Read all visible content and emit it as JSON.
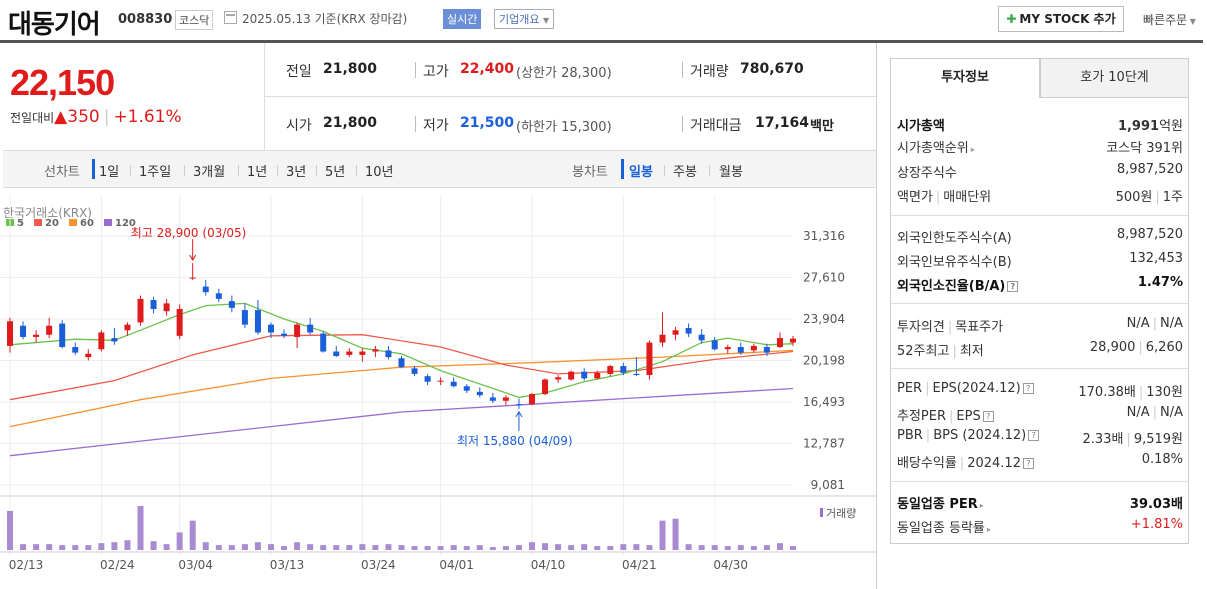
{
  "header": {
    "name": "대동기어",
    "code": "008830",
    "market": "코스닥",
    "date": "2025.05.13 기준(KRX 장마감)",
    "realtime": "실시간",
    "company_info": "기업개요",
    "mystock": "MY STOCK 추가",
    "quick_order": "빠른주문"
  },
  "price": {
    "current": "22,150",
    "change_label": "전일대비",
    "change_arrow": "▲",
    "change": "350",
    "change_pct": "+1.61%"
  },
  "quote": {
    "prev_label": "전일",
    "prev": "21,800",
    "high_label": "고가",
    "high": "22,400",
    "upper_limit": "(상한가 28,300)",
    "volume_label": "거래량",
    "volume": "780,670",
    "open_label": "시가",
    "open": "21,800",
    "low_label": "저가",
    "low": "21,500",
    "lower_limit": "(하한가 15,300)",
    "amount_label": "거래대금",
    "amount": "17,164",
    "amount_unit": "백만"
  },
  "periods": {
    "line_label": "선차트",
    "line_items": [
      "1일",
      "1주일",
      "3개월",
      "1년",
      "3년",
      "5년",
      "10년"
    ],
    "candle_label": "봉차트",
    "candle_items": [
      "일봉",
      "주봉",
      "월봉"
    ]
  },
  "chart_data": {
    "type": "candlestick",
    "source": "한국거래소(KRX)",
    "ma_legend": [
      {
        "name": "5",
        "color": "#6cc24a"
      },
      {
        "name": "20",
        "color": "#ef5a4c"
      },
      {
        "name": "60",
        "color": "#f7922f"
      },
      {
        "name": "120",
        "color": "#9b6bd1"
      }
    ],
    "y_ticks": [
      "31,316",
      "27,610",
      "23,904",
      "20,198",
      "16,493",
      "12,787",
      "9,081"
    ],
    "ylim": [
      9081,
      31316
    ],
    "x_labels": [
      "02/13",
      "02/24",
      "03/04",
      "03/13",
      "03/24",
      "04/01",
      "04/10",
      "04/21",
      "04/30"
    ],
    "x_label_days": [
      0,
      7,
      13,
      20,
      27,
      33,
      40,
      47,
      54
    ],
    "annotations": [
      {
        "text": "최고 28,900 (03/05)",
        "day": 14,
        "price": 28900,
        "color": "#e01b1b",
        "dir": "down"
      },
      {
        "text": "최저 15,880 (04/09)",
        "day": 39,
        "price": 15880,
        "color": "#1a5fd8",
        "dir": "up"
      }
    ],
    "volume_label": "거래량",
    "candles": [
      [
        0,
        21500,
        24000,
        20900,
        23700
      ],
      [
        1,
        23300,
        23700,
        22100,
        22300
      ],
      [
        2,
        22300,
        22900,
        21800,
        22500
      ],
      [
        3,
        22500,
        24000,
        22200,
        23300
      ],
      [
        4,
        23500,
        23800,
        21300,
        21400
      ],
      [
        5,
        21400,
        21800,
        20700,
        20900
      ],
      [
        6,
        20500,
        21200,
        20200,
        20800
      ],
      [
        7,
        21200,
        22900,
        21000,
        22700
      ],
      [
        8,
        22200,
        23100,
        21600,
        21900
      ],
      [
        9,
        22900,
        23600,
        22400,
        23400
      ],
      [
        10,
        23600,
        26000,
        23300,
        25700
      ],
      [
        11,
        25600,
        25900,
        24400,
        24800
      ],
      [
        12,
        24600,
        25700,
        24200,
        25300
      ],
      [
        13,
        22400,
        25200,
        22100,
        24800
      ],
      [
        14,
        27600,
        28900,
        27400,
        27600
      ],
      [
        15,
        26800,
        27400,
        26000,
        26300
      ],
      [
        16,
        26200,
        26600,
        25400,
        25700
      ],
      [
        17,
        25500,
        26000,
        24500,
        24900
      ],
      [
        18,
        24700,
        25300,
        23100,
        23400
      ],
      [
        19,
        24700,
        25600,
        22500,
        22700
      ],
      [
        20,
        23400,
        23600,
        22200,
        22700
      ],
      [
        21,
        22600,
        23000,
        22200,
        22400
      ],
      [
        22,
        22300,
        23600,
        21300,
        23400
      ],
      [
        23,
        23400,
        24000,
        22500,
        22700
      ],
      [
        24,
        22600,
        22800,
        20900,
        21000
      ],
      [
        25,
        21000,
        21500,
        20500,
        20600
      ],
      [
        26,
        20700,
        21300,
        20500,
        21000
      ],
      [
        27,
        20700,
        21300,
        20100,
        21000
      ],
      [
        28,
        21000,
        21500,
        20500,
        21200
      ],
      [
        29,
        21100,
        21500,
        20300,
        20500
      ],
      [
        30,
        20400,
        20600,
        19500,
        19600
      ],
      [
        31,
        19500,
        19700,
        18800,
        19000
      ],
      [
        32,
        18800,
        19000,
        18000,
        18300
      ],
      [
        33,
        18300,
        18700,
        18000,
        18400
      ],
      [
        34,
        18300,
        18700,
        17800,
        17900
      ],
      [
        35,
        17900,
        18100,
        17300,
        17500
      ],
      [
        36,
        17400,
        17800,
        16900,
        17100
      ],
      [
        37,
        16900,
        17300,
        16400,
        16600
      ],
      [
        38,
        16600,
        17100,
        16200,
        16900
      ],
      [
        39,
        16300,
        16800,
        15880,
        16200
      ],
      [
        40,
        16300,
        17300,
        16200,
        17200
      ],
      [
        41,
        17200,
        18600,
        17100,
        18500
      ],
      [
        42,
        18500,
        18900,
        18200,
        18700
      ],
      [
        43,
        18500,
        19300,
        18400,
        19200
      ],
      [
        44,
        19200,
        19500,
        18400,
        18600
      ],
      [
        45,
        18600,
        19300,
        18500,
        19100
      ],
      [
        46,
        19000,
        19800,
        18800,
        19700
      ],
      [
        47,
        19700,
        20000,
        18900,
        19100
      ],
      [
        48,
        19000,
        20500,
        18800,
        18900
      ],
      [
        49,
        18900,
        22000,
        18500,
        21800
      ],
      [
        50,
        21800,
        24500,
        21400,
        22500
      ],
      [
        51,
        22500,
        23200,
        22000,
        22900
      ],
      [
        52,
        23100,
        23500,
        22300,
        22600
      ],
      [
        53,
        22500,
        23000,
        21700,
        22000
      ],
      [
        54,
        22000,
        22300,
        21100,
        21200
      ],
      [
        55,
        21200,
        21600,
        20800,
        21400
      ],
      [
        56,
        21400,
        21800,
        20700,
        20900
      ],
      [
        57,
        21100,
        21700,
        20900,
        21500
      ],
      [
        58,
        21400,
        21700,
        20600,
        20900
      ],
      [
        59,
        21400,
        22700,
        21300,
        22200
      ],
      [
        60,
        21800,
        22400,
        21500,
        22150
      ]
    ],
    "ma5": [
      [
        0,
        21600
      ],
      [
        5,
        22100
      ],
      [
        8,
        22000
      ],
      [
        10,
        22900
      ],
      [
        13,
        24300
      ],
      [
        15,
        25100
      ],
      [
        18,
        25300
      ],
      [
        21,
        23900
      ],
      [
        24,
        22800
      ],
      [
        27,
        21300
      ],
      [
        30,
        20800
      ],
      [
        33,
        19300
      ],
      [
        36,
        18100
      ],
      [
        39,
        16900
      ],
      [
        41,
        17300
      ],
      [
        44,
        18300
      ],
      [
        47,
        19000
      ],
      [
        50,
        20100
      ],
      [
        53,
        21800
      ],
      [
        55,
        22200
      ],
      [
        58,
        21600
      ],
      [
        60,
        21700
      ]
    ],
    "ma20": [
      [
        0,
        16700
      ],
      [
        8,
        18400
      ],
      [
        14,
        20700
      ],
      [
        20,
        22400
      ],
      [
        27,
        22500
      ],
      [
        33,
        21400
      ],
      [
        38,
        19800
      ],
      [
        42,
        19000
      ],
      [
        48,
        19300
      ],
      [
        54,
        20300
      ],
      [
        60,
        21000
      ]
    ],
    "ma60": [
      [
        0,
        14300
      ],
      [
        10,
        16700
      ],
      [
        20,
        18600
      ],
      [
        30,
        19600
      ],
      [
        40,
        20000
      ],
      [
        50,
        20500
      ],
      [
        60,
        21100
      ]
    ],
    "ma120": [
      [
        0,
        11700
      ],
      [
        10,
        13000
      ],
      [
        20,
        14300
      ],
      [
        30,
        15600
      ],
      [
        40,
        16300
      ],
      [
        50,
        17000
      ],
      [
        60,
        17700
      ]
    ],
    "volume": [
      40,
      6,
      6,
      6,
      5,
      5,
      5,
      7,
      8,
      10,
      45,
      9,
      6,
      18,
      30,
      8,
      5,
      5,
      6,
      8,
      6,
      4,
      8,
      6,
      5,
      5,
      5,
      6,
      5,
      6,
      5,
      4,
      4,
      4,
      5,
      4,
      5,
      3,
      4,
      5,
      8,
      7,
      6,
      5,
      6,
      4,
      4,
      6,
      6,
      5,
      30,
      32,
      6,
      5,
      5,
      4,
      5,
      4,
      5,
      7,
      4
    ]
  },
  "panel": {
    "tab_invest": "투자정보",
    "tab_order": "호가 10단계",
    "mcap_label": "시가총액",
    "mcap": "1,991",
    "mcap_unit": "억원",
    "rank_label": "시가총액순위",
    "rank": "코스닥 391위",
    "shares_label": "상장주식수",
    "shares": "8,987,520",
    "par_label": "액면가",
    "unit_label": "매매단위",
    "par": "500원",
    "unit": "1주",
    "foreign_limit_label": "외국인한도주식수(A)",
    "foreign_limit": "8,987,520",
    "foreign_hold_label": "외국인보유주식수(B)",
    "foreign_hold": "132,453",
    "foreign_ratio_label": "외국인소진율(B/A)",
    "foreign_ratio": "1.47%",
    "opinion_label": "투자의견",
    "target_label": "목표주가",
    "opinion": "N/A",
    "target": "N/A",
    "w52_label": "52주최고",
    "w52low_label": "최저",
    "w52_high": "28,900",
    "w52_low": "6,260",
    "per_label": "PER",
    "eps_label": "EPS(2024.12)",
    "per": "170.38배",
    "eps": "130원",
    "est_per_label": "추정PER",
    "est_eps_label": "EPS",
    "est_per": "N/A",
    "est_eps": "N/A",
    "pbr_label": "PBR",
    "bps_label": "BPS (2024.12)",
    "pbr": "2.33배",
    "bps": "9,519원",
    "div_label": "배당수익률",
    "div_date": "2024.12",
    "div": "0.18%",
    "ind_per_label": "동일업종 PER",
    "ind_per": "39.03배",
    "ind_chg_label": "동일업종 등락률",
    "ind_chg": "+1.81%"
  }
}
